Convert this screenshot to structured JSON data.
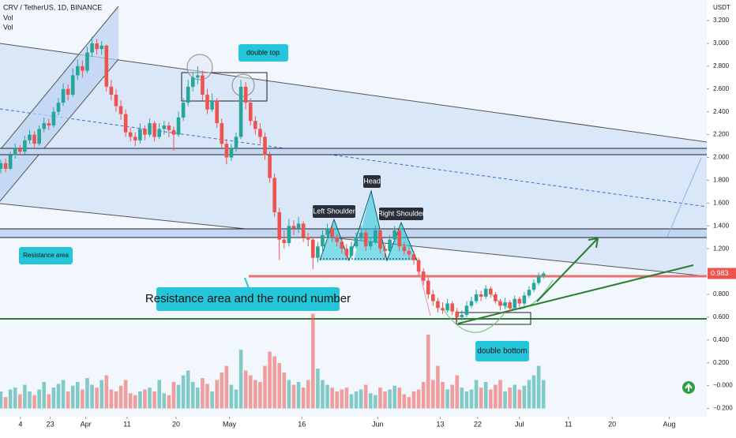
{
  "header": {
    "symbol": "CRV / TetherUS, 1D, BINANCE",
    "vol1": "Vol",
    "vol2": "Vol"
  },
  "annotations": {
    "double_top": "double top",
    "head": "Head",
    "left_shoulder": "Left Shoulder",
    "right_shoulder": "Right Shoulder",
    "resistance_area": "Resistance area",
    "resistance_round": "Resistance area and the round number",
    "double_bottom": "double bottom"
  },
  "chart_data": {
    "type": "candlestick",
    "currency": "USDT",
    "up_color": "#26a69a",
    "down_color": "#ef5350",
    "last_price": 0.983,
    "xlim": [
      0,
      147
    ],
    "xticks": [
      {
        "value": 4.1,
        "label": "4"
      },
      {
        "value": 10.3,
        "label": "23"
      },
      {
        "value": 17.7,
        "label": "Apr"
      },
      {
        "value": 26.3,
        "label": "11"
      },
      {
        "value": 36.5,
        "label": "20"
      },
      {
        "value": 47.6,
        "label": "May"
      },
      {
        "value": 62.7,
        "label": "16"
      },
      {
        "value": 78.5,
        "label": "Jun"
      },
      {
        "value": 91.5,
        "label": "13"
      },
      {
        "value": 99.3,
        "label": "22"
      },
      {
        "value": 108,
        "label": "Jul"
      },
      {
        "value": 118.2,
        "label": "11"
      },
      {
        "value": 127.3,
        "label": "20"
      },
      {
        "value": 139.2,
        "label": "Aug"
      }
    ],
    "ylim": [
      -0.3,
      3.38
    ],
    "yticks": [
      {
        "value": 3.2,
        "label": "3.200"
      },
      {
        "value": 3.0,
        "label": "3.000"
      },
      {
        "value": 2.8,
        "label": "2.800"
      },
      {
        "value": 2.6,
        "label": "2.600"
      },
      {
        "value": 2.4,
        "label": "2.400"
      },
      {
        "value": 2.2,
        "label": "2.200"
      },
      {
        "value": 2.0,
        "label": "2.000"
      },
      {
        "value": 1.8,
        "label": "1.800"
      },
      {
        "value": 1.6,
        "label": "1.600"
      },
      {
        "value": 1.4,
        "label": "1.400"
      },
      {
        "value": 1.2,
        "label": "1.200"
      },
      {
        "value": 0.8,
        "label": "0.800"
      },
      {
        "value": 0.6,
        "label": "0.600"
      },
      {
        "value": 0.4,
        "label": "0.400"
      },
      {
        "value": 0.2,
        "label": "0.200"
      },
      {
        "value": 0,
        "label": "−0.000"
      },
      {
        "value": -0.2,
        "label": "−0.200"
      }
    ],
    "candles": [
      [
        1.9,
        1.98,
        1.86,
        1.95
      ],
      [
        1.95,
        1.99,
        1.87,
        1.9
      ],
      [
        1.9,
        2.05,
        1.89,
        2.02
      ],
      [
        2.02,
        2.12,
        1.99,
        2.08
      ],
      [
        2.08,
        2.11,
        2.02,
        2.05
      ],
      [
        2.05,
        2.19,
        2.03,
        2.15
      ],
      [
        2.15,
        2.24,
        2.12,
        2.2
      ],
      [
        2.2,
        2.23,
        2.09,
        2.12
      ],
      [
        2.12,
        2.28,
        2.1,
        2.25
      ],
      [
        2.25,
        2.35,
        2.22,
        2.3
      ],
      [
        2.3,
        2.34,
        2.24,
        2.28
      ],
      [
        2.28,
        2.44,
        2.26,
        2.4
      ],
      [
        2.4,
        2.52,
        2.37,
        2.48
      ],
      [
        2.48,
        2.65,
        2.45,
        2.6
      ],
      [
        2.6,
        2.64,
        2.5,
        2.55
      ],
      [
        2.55,
        2.78,
        2.53,
        2.72
      ],
      [
        2.72,
        2.86,
        2.68,
        2.8
      ],
      [
        2.8,
        2.85,
        2.7,
        2.76
      ],
      [
        2.76,
        2.97,
        2.74,
        2.92
      ],
      [
        2.92,
        3.06,
        2.88,
        3.0
      ],
      [
        3.0,
        3.04,
        2.9,
        2.95
      ],
      [
        2.95,
        3.02,
        2.9,
        2.98
      ],
      [
        2.98,
        2.99,
        2.58,
        2.62
      ],
      [
        2.62,
        2.68,
        2.5,
        2.55
      ],
      [
        2.55,
        2.6,
        2.4,
        2.45
      ],
      [
        2.45,
        2.5,
        2.33,
        2.38
      ],
      [
        2.38,
        2.42,
        2.18,
        2.22
      ],
      [
        2.22,
        2.26,
        2.14,
        2.18
      ],
      [
        2.18,
        2.22,
        2.1,
        2.15
      ],
      [
        2.15,
        2.3,
        2.12,
        2.25
      ],
      [
        2.25,
        2.28,
        2.15,
        2.2
      ],
      [
        2.2,
        2.34,
        2.18,
        2.3
      ],
      [
        2.3,
        2.32,
        2.14,
        2.18
      ],
      [
        2.18,
        2.3,
        2.16,
        2.25
      ],
      [
        2.25,
        2.32,
        2.2,
        2.28
      ],
      [
        2.28,
        2.31,
        2.18,
        2.24
      ],
      [
        2.24,
        2.27,
        2.06,
        2.2
      ],
      [
        2.2,
        2.4,
        2.18,
        2.35
      ],
      [
        2.35,
        2.52,
        2.32,
        2.48
      ],
      [
        2.48,
        2.68,
        2.45,
        2.62
      ],
      [
        2.62,
        2.75,
        2.58,
        2.7
      ],
      [
        2.7,
        2.8,
        2.64,
        2.72
      ],
      [
        2.72,
        2.76,
        2.5,
        2.55
      ],
      [
        2.55,
        2.6,
        2.38,
        2.42
      ],
      [
        2.42,
        2.56,
        2.4,
        2.5
      ],
      [
        2.5,
        2.52,
        2.26,
        2.3
      ],
      [
        2.3,
        2.34,
        2.08,
        2.12
      ],
      [
        2.12,
        2.16,
        1.94,
        2.0
      ],
      [
        2.0,
        2.12,
        1.97,
        2.08
      ],
      [
        2.08,
        2.22,
        2.05,
        2.18
      ],
      [
        2.18,
        2.68,
        2.16,
        2.62
      ],
      [
        2.62,
        2.66,
        2.42,
        2.48
      ],
      [
        2.48,
        2.52,
        2.28,
        2.32
      ],
      [
        2.32,
        2.36,
        2.2,
        2.25
      ],
      [
        2.25,
        2.3,
        2.12,
        2.18
      ],
      [
        2.18,
        2.22,
        1.98,
        2.02
      ],
      [
        2.02,
        2.05,
        1.78,
        1.82
      ],
      [
        1.82,
        1.86,
        1.48,
        1.52
      ],
      [
        1.52,
        1.56,
        1.1,
        1.28
      ],
      [
        1.28,
        1.36,
        1.2,
        1.25
      ],
      [
        1.25,
        1.46,
        1.22,
        1.4
      ],
      [
        1.4,
        1.45,
        1.32,
        1.38
      ],
      [
        1.38,
        1.48,
        1.34,
        1.42
      ],
      [
        1.42,
        1.44,
        1.26,
        1.3
      ],
      [
        1.3,
        1.34,
        1.22,
        1.28
      ],
      [
        1.28,
        1.3,
        1.02,
        1.12
      ],
      [
        1.12,
        1.26,
        1.08,
        1.22
      ],
      [
        1.22,
        1.36,
        1.18,
        1.32
      ],
      [
        1.32,
        1.42,
        1.28,
        1.38
      ],
      [
        1.38,
        1.4,
        1.26,
        1.3
      ],
      [
        1.3,
        1.33,
        1.22,
        1.26
      ],
      [
        1.26,
        1.29,
        1.16,
        1.2
      ],
      [
        1.2,
        1.24,
        1.1,
        1.14
      ],
      [
        1.14,
        1.26,
        1.12,
        1.22
      ],
      [
        1.22,
        1.34,
        1.2,
        1.3
      ],
      [
        1.3,
        1.4,
        1.27,
        1.34
      ],
      [
        1.34,
        1.37,
        1.18,
        1.22
      ],
      [
        1.22,
        1.3,
        1.19,
        1.26
      ],
      [
        1.26,
        1.4,
        1.24,
        1.36
      ],
      [
        1.36,
        1.38,
        1.16,
        1.2
      ],
      [
        1.2,
        1.24,
        1.12,
        1.18
      ],
      [
        1.18,
        1.32,
        1.16,
        1.28
      ],
      [
        1.28,
        1.4,
        1.26,
        1.36
      ],
      [
        1.36,
        1.38,
        1.18,
        1.22
      ],
      [
        1.22,
        1.26,
        1.14,
        1.18
      ],
      [
        1.18,
        1.22,
        1.11,
        1.15
      ],
      [
        1.15,
        1.18,
        1.06,
        1.1
      ],
      [
        1.1,
        1.12,
        0.96,
        1.0
      ],
      [
        1.0,
        1.03,
        0.88,
        0.92
      ],
      [
        0.92,
        0.95,
        0.76,
        0.8
      ],
      [
        0.8,
        0.84,
        0.7,
        0.74
      ],
      [
        0.74,
        0.77,
        0.64,
        0.68
      ],
      [
        0.68,
        0.73,
        0.63,
        0.66
      ],
      [
        0.66,
        0.76,
        0.64,
        0.72
      ],
      [
        0.72,
        0.74,
        0.62,
        0.65
      ],
      [
        0.65,
        0.68,
        0.56,
        0.6
      ],
      [
        0.6,
        0.66,
        0.57,
        0.62
      ],
      [
        0.62,
        0.74,
        0.6,
        0.7
      ],
      [
        0.7,
        0.78,
        0.68,
        0.74
      ],
      [
        0.74,
        0.84,
        0.72,
        0.8
      ],
      [
        0.8,
        0.83,
        0.74,
        0.78
      ],
      [
        0.78,
        0.88,
        0.76,
        0.85
      ],
      [
        0.85,
        0.87,
        0.77,
        0.8
      ],
      [
        0.8,
        0.82,
        0.72,
        0.74
      ],
      [
        0.74,
        0.76,
        0.66,
        0.7
      ],
      [
        0.7,
        0.77,
        0.67,
        0.73
      ],
      [
        0.73,
        0.75,
        0.64,
        0.68
      ],
      [
        0.68,
        0.79,
        0.66,
        0.76
      ],
      [
        0.76,
        0.78,
        0.69,
        0.72
      ],
      [
        0.72,
        0.82,
        0.7,
        0.79
      ],
      [
        0.79,
        0.87,
        0.77,
        0.84
      ],
      [
        0.84,
        0.93,
        0.82,
        0.9
      ],
      [
        0.9,
        0.99,
        0.88,
        0.96
      ],
      [
        0.96,
        1.0,
        0.94,
        0.983
      ]
    ],
    "volumes": [
      18,
      12,
      20,
      22,
      15,
      25,
      18,
      14,
      20,
      28,
      15,
      22,
      26,
      30,
      18,
      24,
      28,
      20,
      32,
      25,
      22,
      30,
      35,
      20,
      18,
      24,
      30,
      16,
      14,
      18,
      20,
      22,
      18,
      30,
      16,
      14,
      28,
      25,
      35,
      40,
      28,
      22,
      32,
      26,
      18,
      30,
      38,
      45,
      25,
      20,
      62,
      40,
      35,
      30,
      28,
      45,
      60,
      55,
      48,
      38,
      30,
      25,
      28,
      22,
      30,
      100,
      42,
      30,
      25,
      22,
      18,
      20,
      22,
      15,
      18,
      20,
      25,
      16,
      14,
      22,
      18,
      20,
      24,
      22,
      15,
      12,
      18,
      20,
      28,
      78,
      30,
      45,
      28,
      20,
      25,
      35,
      22,
      18,
      20,
      30,
      22,
      28,
      20,
      25,
      30,
      18,
      22,
      25,
      20,
      24,
      30,
      35,
      45,
      30
    ]
  }
}
